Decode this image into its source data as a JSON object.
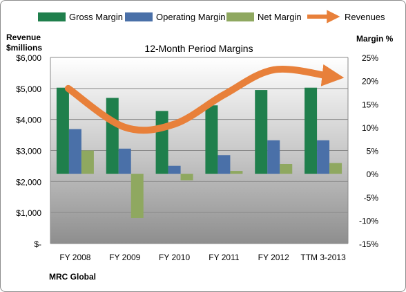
{
  "chart_data": {
    "type": "bar",
    "title": "12-Month Period Margins",
    "company": "MRC Global",
    "categories": [
      "FY 2008",
      "FY 2009",
      "FY 2010",
      "FY 2011",
      "FY 2012",
      "TTM 3-2013"
    ],
    "left_axis": {
      "label_line1": "Revenue",
      "label_line2": "$millions",
      "ylim": [
        0,
        6000
      ],
      "ticks": [
        6000,
        5000,
        4000,
        3000,
        2000,
        1000,
        0
      ],
      "tick_labels": [
        "$6,000",
        "$5,000",
        "$4,000",
        "$3,000",
        "$2,000",
        "$1,000",
        "$-"
      ]
    },
    "right_axis": {
      "label": "Margin %",
      "ylim": [
        -15,
        25
      ],
      "ticks": [
        25,
        20,
        15,
        10,
        5,
        0,
        -5,
        -10,
        -15
      ],
      "tick_labels": [
        "25%",
        "20%",
        "15%",
        "10%",
        "5%",
        "0%",
        "-5%",
        "-10%",
        "-15%"
      ]
    },
    "series": [
      {
        "name": "Gross Margin",
        "kind": "bar",
        "axis": "right",
        "color": "#1f7f4c",
        "values": [
          18.5,
          16.3,
          13.5,
          14.7,
          18.0,
          18.5
        ]
      },
      {
        "name": "Operating Margin",
        "kind": "bar",
        "axis": "right",
        "color": "#4a70a8",
        "values": [
          9.6,
          5.4,
          1.7,
          4.0,
          7.2,
          7.2
        ]
      },
      {
        "name": "Net Margin",
        "kind": "bar",
        "axis": "right",
        "color": "#8fa860",
        "values": [
          5.0,
          -9.5,
          -1.4,
          0.6,
          2.1,
          2.3
        ]
      },
      {
        "name": "Revenues",
        "kind": "line",
        "axis": "left",
        "color": "#e8803a",
        "values": [
          5000,
          3750,
          3850,
          4800,
          5600,
          5400
        ]
      }
    ],
    "legend_position": "top",
    "grid": true
  }
}
